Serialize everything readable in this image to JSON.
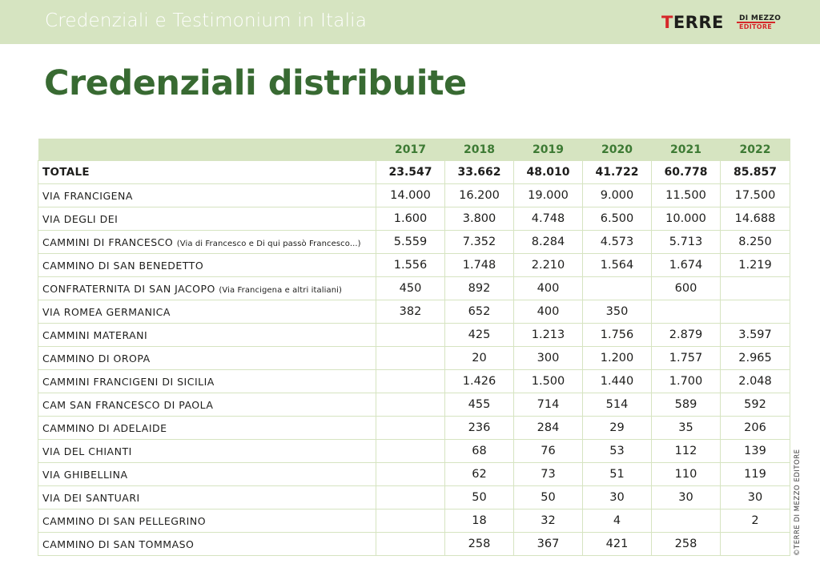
{
  "header": {
    "title": "Credenziali e Testimonium in Italia",
    "logo": {
      "main_first": "T",
      "main_rest": "ERRE",
      "sub_line1": "DI MEZZO",
      "sub_line2": "EDITORE",
      "colors": {
        "accent": "#d6272a",
        "dark": "#1d1d1b"
      }
    }
  },
  "page_title": "Credenziali distribuite",
  "table": {
    "years": [
      "2017",
      "2018",
      "2019",
      "2020",
      "2021",
      "2022"
    ],
    "total": {
      "label": "TOTALE",
      "values": [
        "23.547",
        "33.662",
        "48.010",
        "41.722",
        "60.778",
        "85.857"
      ]
    },
    "rows": [
      {
        "name": "VIA FRANCIGENA",
        "note": "",
        "values": [
          "14.000",
          "16.200",
          "19.000",
          "9.000",
          "11.500",
          "17.500"
        ]
      },
      {
        "name": "VIA DEGLI DEI",
        "note": "",
        "values": [
          "1.600",
          "3.800",
          "4.748",
          "6.500",
          "10.000",
          "14.688"
        ]
      },
      {
        "name": "CAMMINI DI FRANCESCO",
        "note": "(Via di Francesco e Di qui passò Francesco...)",
        "values": [
          "5.559",
          "7.352",
          "8.284",
          "4.573",
          "5.713",
          "8.250"
        ]
      },
      {
        "name": "CAMMINO DI SAN BENEDETTO",
        "note": "",
        "values": [
          "1.556",
          "1.748",
          "2.210",
          "1.564",
          "1.674",
          "1.219"
        ]
      },
      {
        "name": "CONFRATERNITA DI SAN JACOPO",
        "note": "(Via Francigena e altri italiani)",
        "values": [
          "450",
          "892",
          "400",
          "",
          "600",
          ""
        ]
      },
      {
        "name": "VIA ROMEA GERMANICA",
        "note": "",
        "values": [
          "382",
          "652",
          "400",
          "350",
          "",
          ""
        ]
      },
      {
        "name": "CAMMINI MATERANI",
        "note": "",
        "values": [
          "",
          "425",
          "1.213",
          "1.756",
          "2.879",
          "3.597"
        ]
      },
      {
        "name": "CAMMINO DI OROPA",
        "note": "",
        "values": [
          "",
          "20",
          "300",
          "1.200",
          "1.757",
          "2.965"
        ]
      },
      {
        "name": "CAMMINI FRANCIGENI DI SICILIA",
        "note": "",
        "values": [
          "",
          "1.426",
          "1.500",
          "1.440",
          "1.700",
          "2.048"
        ]
      },
      {
        "name": "CAM SAN FRANCESCO DI PAOLA",
        "note": "",
        "values": [
          "",
          "455",
          "714",
          "514",
          "589",
          "592"
        ]
      },
      {
        "name": "CAMMINO DI ADELAIDE",
        "note": "",
        "values": [
          "",
          "236",
          "284",
          "29",
          "35",
          "206"
        ]
      },
      {
        "name": "VIA DEL CHIANTI",
        "note": "",
        "values": [
          "",
          "68",
          "76",
          "53",
          "112",
          "139"
        ]
      },
      {
        "name": "VIA GHIBELLINA",
        "note": "",
        "values": [
          "",
          "62",
          "73",
          "51",
          "110",
          "119"
        ]
      },
      {
        "name": "VIA DEI SANTUARI",
        "note": "",
        "values": [
          "",
          "50",
          "50",
          "30",
          "30",
          "30"
        ]
      },
      {
        "name": "CAMMINO DI SAN PELLEGRINO",
        "note": "",
        "values": [
          "",
          "18",
          "32",
          "4",
          "",
          "2"
        ]
      },
      {
        "name": "CAMMINO DI SAN TOMMASO",
        "note": "",
        "values": [
          "",
          "258",
          "367",
          "421",
          "258",
          ""
        ]
      }
    ]
  },
  "credit": "©TERRE DI MEZZO EDITORE",
  "colors": {
    "header_bg": "#d6e4c1",
    "title_green": "#386a32",
    "year_green": "#3d7a34"
  }
}
